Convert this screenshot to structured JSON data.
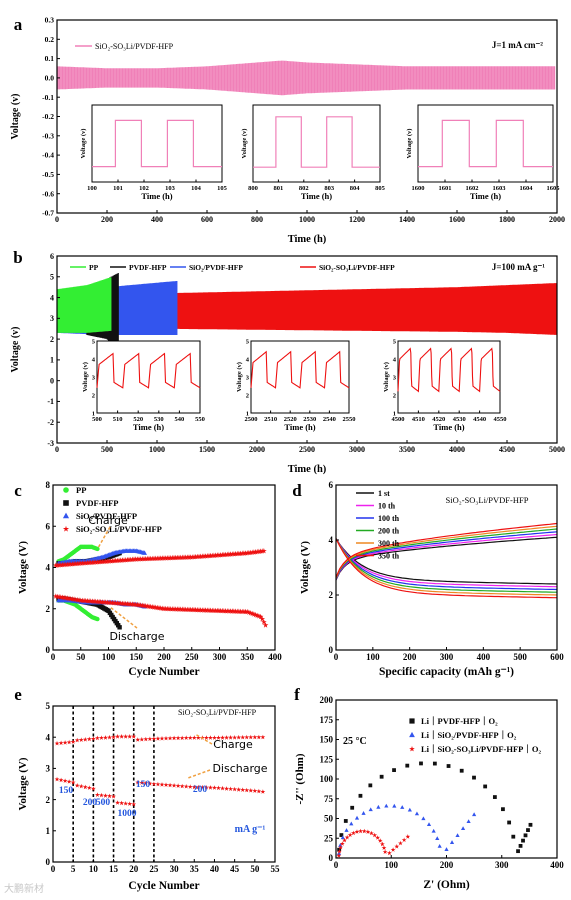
{
  "watermark": "大鹏新材",
  "chart_data": [
    {
      "id": "a",
      "panel_label": "a",
      "type": "line",
      "title": "",
      "xlabel": "Time (h)",
      "ylabel": "Voltage (v)",
      "xlim": [
        0,
        2000
      ],
      "ylim": [
        -0.7,
        0.3
      ],
      "xticks": [
        0,
        200,
        400,
        600,
        800,
        1000,
        1200,
        1400,
        1600,
        1800,
        2000
      ],
      "yticks": [
        -0.7,
        -0.6,
        -0.5,
        -0.4,
        -0.3,
        -0.2,
        -0.1,
        0.0,
        0.1,
        0.2,
        0.3
      ],
      "ytick_labels": [
        "-0.7",
        "-0.6",
        "-0.5",
        "-0.4",
        "-0.3",
        "-0.2",
        "-0.1",
        "0.0",
        "0.1",
        "0.2",
        "0.3"
      ],
      "annotation": "J=1 mA cm⁻²",
      "legend_position": "top-left",
      "series": [
        {
          "name": "SiO₂-SO₃Li/PVDF-HFP",
          "color": "#f080b8",
          "kind": "band",
          "x": [
            0,
            200,
            400,
            600,
            800,
            900,
            1000,
            1200,
            1400,
            1600,
            1800,
            2000
          ],
          "upper": [
            0.06,
            0.05,
            0.05,
            0.06,
            0.08,
            0.09,
            0.08,
            0.07,
            0.06,
            0.06,
            0.06,
            0.06
          ],
          "lower": [
            -0.06,
            -0.05,
            -0.05,
            -0.06,
            -0.08,
            -0.09,
            -0.08,
            -0.07,
            -0.06,
            -0.06,
            -0.06,
            -0.06
          ]
        }
      ],
      "insets": [
        {
          "xlim": [
            100,
            105
          ],
          "xticks": [
            100,
            101,
            102,
            103,
            104,
            105
          ],
          "ylabel": "Voltage (v)",
          "xlabel": "Time (h)",
          "ylim": [
            -0.1,
            0.1
          ],
          "high": 0.06,
          "low": -0.06,
          "start": 100
        },
        {
          "xlim": [
            800,
            805
          ],
          "xticks": [
            800,
            801,
            802,
            803,
            804,
            805
          ],
          "ylabel": "Voltage (v)",
          "xlabel": "Time (h)",
          "ylim": [
            -0.13,
            0.13
          ],
          "high": 0.09,
          "low": -0.08,
          "start": 800
        },
        {
          "xlim": [
            1600,
            1605
          ],
          "xticks": [
            1600,
            1601,
            1602,
            1603,
            1604,
            1605
          ],
          "ylabel": "Voltage (v)",
          "xlabel": "Time (h)",
          "ylim": [
            -0.1,
            0.1
          ],
          "high": 0.06,
          "low": -0.06,
          "start": 1600
        }
      ]
    },
    {
      "id": "b",
      "panel_label": "b",
      "type": "line",
      "title": "",
      "xlabel": "Time (h)",
      "ylabel": "Voltage (v)",
      "xlim": [
        0,
        5000
      ],
      "ylim": [
        -3,
        6
      ],
      "xticks": [
        0,
        500,
        1000,
        1500,
        2000,
        2500,
        3000,
        3500,
        4000,
        4500,
        5000
      ],
      "yticks": [
        -3,
        -2,
        -1,
        0,
        1,
        2,
        3,
        4,
        5,
        6
      ],
      "annotation": "J=100 mA g⁻¹",
      "legend_position": "top",
      "series": [
        {
          "name": "PP",
          "color": "#33ee33",
          "kind": "band",
          "x": [
            0,
            300,
            550
          ],
          "upper": [
            4.4,
            4.6,
            5.0
          ],
          "lower": [
            2.3,
            2.3,
            2.4
          ]
        },
        {
          "name": "PVDF-HFP",
          "color": "#111111",
          "kind": "band",
          "x": [
            300,
            500,
            620
          ],
          "upper": [
            4.4,
            4.9,
            5.2
          ],
          "lower": [
            2.2,
            2.0,
            1.2
          ]
        },
        {
          "name": "SiO₂/PVDF-HFP",
          "color": "#3355ee",
          "kind": "band",
          "x": [
            0,
            500,
            1200
          ],
          "upper": [
            4.2,
            4.5,
            4.8
          ],
          "lower": [
            2.3,
            2.2,
            2.2
          ]
        },
        {
          "name": "SiO₂-SO₃Li/PVDF-HFP",
          "color": "#ee1111",
          "kind": "band",
          "x": [
            0,
            1000,
            2000,
            3000,
            4000,
            4500,
            5000
          ],
          "upper": [
            4.1,
            4.2,
            4.3,
            4.4,
            4.5,
            4.6,
            4.7
          ],
          "lower": [
            2.5,
            2.5,
            2.45,
            2.4,
            2.35,
            2.3,
            2.2
          ]
        }
      ],
      "insets": [
        {
          "xlim": [
            500,
            550
          ],
          "xticks": [
            500,
            510,
            520,
            530,
            540,
            550
          ],
          "ylabel": "Voltage (v)",
          "xlabel": "Time (h)",
          "ylim": [
            1,
            5
          ],
          "yticks": [
            1,
            2,
            3,
            4,
            5
          ],
          "low": 2.4,
          "high": 4.3,
          "period": 12.5
        },
        {
          "xlim": [
            2500,
            2550
          ],
          "xticks": [
            2500,
            2510,
            2520,
            2530,
            2540,
            2550
          ],
          "ylabel": "Voltage (v)",
          "xlabel": "Time (h)",
          "ylim": [
            1,
            5
          ],
          "yticks": [
            1,
            2,
            3,
            4,
            5
          ],
          "low": 2.4,
          "high": 4.4,
          "period": 12.5
        },
        {
          "xlim": [
            4500,
            4550
          ],
          "xticks": [
            4500,
            4510,
            4520,
            4530,
            4540,
            4550
          ],
          "ylabel": "Voltage (v)",
          "xlabel": "Time (h)",
          "ylim": [
            1,
            5
          ],
          "yticks": [
            1,
            2,
            3,
            4,
            5
          ],
          "low": 2.2,
          "high": 4.6,
          "period": 10
        }
      ]
    },
    {
      "id": "c",
      "panel_label": "c",
      "type": "scatter",
      "title": "",
      "xlabel": "Cycle Number",
      "ylabel": "Voltage (V)",
      "xlim": [
        0,
        400
      ],
      "ylim": [
        0,
        8
      ],
      "xticks": [
        0,
        50,
        100,
        150,
        200,
        250,
        300,
        350,
        400
      ],
      "yticks": [
        0,
        2,
        4,
        6,
        8
      ],
      "annotations": [
        "Charge",
        "Discharge"
      ],
      "legend_position": "top-left",
      "series": [
        {
          "name": "PP",
          "color": "#33ee33",
          "marker": "circle",
          "charge": {
            "x": [
              10,
              20,
              30,
              40,
              50,
              60,
              70,
              80
            ],
            "y": [
              4.3,
              4.4,
              4.6,
              4.8,
              5.0,
              5.0,
              5.0,
              4.9
            ]
          },
          "discharge": {
            "x": [
              10,
              20,
              30,
              40,
              50,
              60,
              70,
              80
            ],
            "y": [
              2.4,
              2.4,
              2.3,
              2.2,
              2.0,
              1.8,
              1.6,
              1.5
            ]
          }
        },
        {
          "name": "PVDF-HFP",
          "color": "#111111",
          "marker": "square",
          "charge": {
            "x": [
              10,
              20,
              40,
              60,
              80,
              100,
              110,
              120
            ],
            "y": [
              4.2,
              4.2,
              4.3,
              4.3,
              4.4,
              4.5,
              4.6,
              4.7
            ]
          },
          "discharge": {
            "x": [
              10,
              20,
              40,
              60,
              80,
              100,
              110,
              120
            ],
            "y": [
              2.5,
              2.5,
              2.4,
              2.3,
              2.2,
              1.9,
              1.5,
              1.1
            ]
          }
        },
        {
          "name": "SiO₂/PVDF-HFP",
          "color": "#3355ee",
          "marker": "triangle",
          "charge": {
            "x": [
              10,
              30,
              60,
              90,
              110,
              130,
              150,
              165
            ],
            "y": [
              4.2,
              4.3,
              4.3,
              4.5,
              4.7,
              4.8,
              4.8,
              4.7
            ]
          },
          "discharge": {
            "x": [
              10,
              30,
              60,
              90,
              110,
              130,
              150,
              165
            ],
            "y": [
              2.4,
              2.4,
              2.3,
              2.3,
              2.3,
              2.2,
              2.2,
              2.1
            ]
          }
        },
        {
          "name": "SiO₂-SO₃Li/PVDF-HFP",
          "color": "#ee1111",
          "marker": "star",
          "charge": {
            "x": [
              5,
              50,
              100,
              150,
              200,
              250,
              300,
              350,
              380
            ],
            "y": [
              4.1,
              4.2,
              4.3,
              4.4,
              4.45,
              4.5,
              4.6,
              4.7,
              4.8
            ]
          },
          "discharge": {
            "x": [
              5,
              50,
              100,
              150,
              200,
              250,
              300,
              350,
              375,
              385
            ],
            "y": [
              2.6,
              2.4,
              2.3,
              2.2,
              2.0,
              1.95,
              1.9,
              1.85,
              1.6,
              1.1
            ]
          }
        }
      ]
    },
    {
      "id": "d",
      "panel_label": "d",
      "type": "line",
      "title": "SiO₂-SO₃Li/PVDF-HFP",
      "xlabel": "Specific capacity (mAh g⁻¹)",
      "ylabel": "Voltage (V)",
      "xlim": [
        0,
        600
      ],
      "ylim": [
        0,
        6
      ],
      "xticks": [
        0,
        100,
        200,
        300,
        400,
        500,
        600
      ],
      "yticks": [
        0,
        2,
        4,
        6
      ],
      "legend_position": "top-left",
      "series": [
        {
          "name": "1 st",
          "color": "#111111",
          "charge_end": 4.1,
          "discharge_end": 2.4
        },
        {
          "name": "10 th",
          "color": "#ee22ee",
          "charge_end": 4.2,
          "discharge_end": 2.3
        },
        {
          "name": "100 th",
          "color": "#2233ee",
          "charge_end": 4.3,
          "discharge_end": 2.2
        },
        {
          "name": "200 th",
          "color": "#22aa22",
          "charge_end": 4.4,
          "discharge_end": 2.1
        },
        {
          "name": "300 th",
          "color": "#ee8822",
          "charge_end": 4.5,
          "discharge_end": 2.0
        },
        {
          "name": "350 th",
          "color": "#ee1111",
          "charge_end": 4.6,
          "discharge_end": 1.9
        }
      ]
    },
    {
      "id": "e",
      "panel_label": "e",
      "type": "scatter",
      "title": "SiO₂-SO₃Li/PVDF-HFP",
      "xlabel": "Cycle Number",
      "ylabel": "Voltage (V)",
      "xlim": [
        0,
        55
      ],
      "ylim": [
        0,
        5
      ],
      "xticks": [
        0,
        5,
        10,
        15,
        20,
        25,
        30,
        35,
        40,
        45,
        50,
        55
      ],
      "yticks": [
        0,
        1,
        2,
        3,
        4,
        5
      ],
      "annotations": [
        "Charge",
        "Discharge"
      ],
      "unit_label": "mA g⁻¹",
      "rate_labels": [
        "150",
        "200",
        "500",
        "1000",
        "150",
        "200"
      ],
      "dividers": [
        5,
        10,
        15,
        20,
        25
      ],
      "series": [
        {
          "name": "charge",
          "color": "#ee1111",
          "marker": "star",
          "x": [
            1,
            5,
            6,
            10,
            11,
            15,
            16,
            20,
            21,
            25,
            30,
            35,
            40,
            45,
            50,
            52
          ],
          "y": [
            3.8,
            3.85,
            3.9,
            3.95,
            3.97,
            4.0,
            4.02,
            4.02,
            3.92,
            3.95,
            3.97,
            3.98,
            3.98,
            3.99,
            4.0,
            4.0
          ]
        },
        {
          "name": "discharge",
          "color": "#ee1111",
          "marker": "star",
          "x": [
            1,
            5,
            6,
            10,
            11,
            15,
            16,
            20,
            21,
            25,
            30,
            35,
            40,
            45,
            50,
            52
          ],
          "y": [
            2.65,
            2.55,
            2.45,
            2.35,
            2.15,
            2.1,
            1.9,
            1.85,
            2.55,
            2.5,
            2.45,
            2.4,
            2.38,
            2.33,
            2.28,
            2.25
          ]
        }
      ]
    },
    {
      "id": "f",
      "panel_label": "f",
      "type": "scatter",
      "title": "",
      "xlabel": "Z' (Ohm)",
      "ylabel": "-Z'' (Ohm)",
      "xlim": [
        0,
        400
      ],
      "ylim": [
        0,
        200
      ],
      "xticks": [
        0,
        100,
        200,
        300,
        400
      ],
      "yticks": [
        0,
        25,
        50,
        75,
        100,
        125,
        150,
        175,
        200
      ],
      "annotation": "25 °C",
      "legend_position": "top-left",
      "series": [
        {
          "name": "Li｜PVDF-HFP｜O₂",
          "color": "#111111",
          "marker": "square",
          "r0": 5,
          "r1": 325,
          "peak": 120,
          "tail_end": [
            352,
            42
          ]
        },
        {
          "name": "Li｜SiO₂/PVDF-HFP｜O₂",
          "color": "#3355ee",
          "marker": "triangle",
          "r0": 5,
          "r1": 190,
          "peak": 66,
          "tail_end": [
            250,
            55
          ]
        },
        {
          "name": "Li｜SiO₂-SO₃Li/PVDF-HFP｜O₂",
          "color": "#ee1111",
          "marker": "star",
          "r0": 5,
          "r1": 90,
          "peak": 34,
          "tail_end": [
            130,
            27
          ]
        }
      ]
    }
  ]
}
